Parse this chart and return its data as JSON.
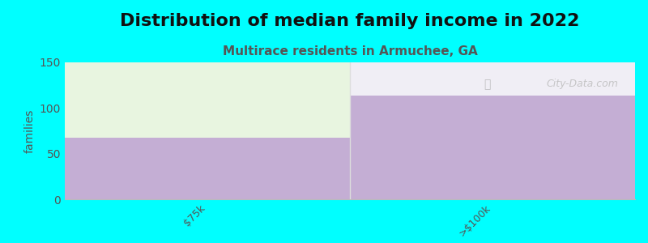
{
  "title": "Distribution of median family income in 2022",
  "subtitle": "Multirace residents in Armuchee, GA",
  "categories": [
    "$75k",
    ">$100k"
  ],
  "values": [
    67,
    113
  ],
  "bar_color": "#C4AED4",
  "top_fill_color_bar1": "#E8F5E0",
  "top_fill_color_bar2": "#F0EEF5",
  "background_color": "#00FFFF",
  "plot_bg_color": "#FFFFFF",
  "ylabel": "families",
  "ylim": [
    0,
    150
  ],
  "yticks": [
    0,
    50,
    100,
    150
  ],
  "title_fontsize": 16,
  "subtitle_fontsize": 11,
  "title_color": "#111111",
  "subtitle_color": "#555555",
  "watermark": "City-Data.com",
  "tick_label_color": "#555555",
  "tick_label_fontsize": 9
}
